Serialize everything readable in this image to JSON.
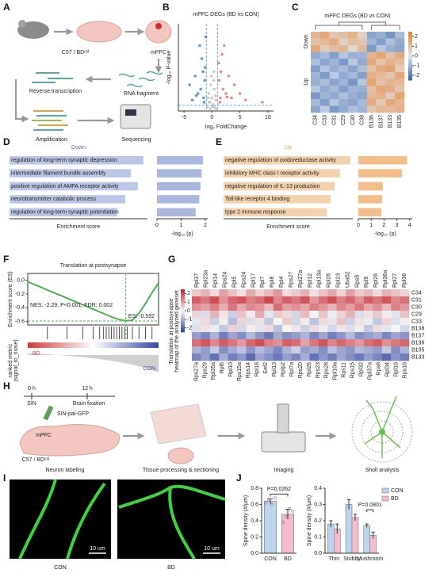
{
  "panel_labels": [
    "A",
    "B",
    "C",
    "D",
    "E",
    "F",
    "G",
    "H",
    "I",
    "J"
  ],
  "diagram_a": {
    "strain": "C57 / BDᶜˢᴵ",
    "region": "mPFC",
    "rna": "RNA fragment",
    "rt": "Reverse transcription",
    "amp": "Amplification",
    "seq": "Sequencing"
  },
  "diagram_h": {
    "t0": "0 h",
    "t12": "12 h",
    "sin": "SIN",
    "fix": "Brain fixation",
    "virus": "SIN-pal-GFP",
    "region": "mPFC",
    "strain": "C57 / BDᶜˢᴵ",
    "step1": "Neuron labeling",
    "step2": "Tissue processing & sectioning",
    "step3": "Imaging",
    "step4": "Sholl analysis"
  },
  "images_i": {
    "left": "CON",
    "right": "BD",
    "scale_left": "10 um",
    "scale_right": "10 um"
  },
  "chart_data": [
    {
      "type": "scatter",
      "title": "mPFC DEGs (BD vs CON)",
      "xlabel": "log₂ FoldChange",
      "ylabel": "-log₁₀ P-value",
      "xlim": [
        -6,
        11
      ],
      "ylim": [
        0,
        20
      ],
      "xticks": [
        -5,
        0,
        5,
        10
      ],
      "thresholds": {
        "x": [
          -1,
          1
        ],
        "y": 1.3
      },
      "series": [
        {
          "color": "#bdbdbd",
          "x": [
            -0.8,
            -0.5,
            -0.3,
            0,
            0.2,
            0.5,
            0.7,
            -0.6,
            0.4,
            0.1,
            -0.2,
            0.3,
            0.6,
            -0.4,
            0.8,
            -0.1,
            0.35,
            -0.7
          ],
          "y": [
            1,
            2,
            0.5,
            3,
            1.5,
            0.8,
            2.5,
            4,
            5,
            1,
            6,
            7,
            3.5,
            2,
            0.5,
            8,
            9,
            3
          ]
        },
        {
          "color": "#3f7fc6",
          "x": [
            -1.5,
            -2,
            -3,
            -1.2,
            -2.5,
            -4,
            -1.8,
            -1.3,
            -3.5,
            -2.2,
            -1.6,
            -1.1,
            -1.4,
            -2.8
          ],
          "y": [
            3,
            5,
            8,
            10,
            4,
            6,
            12,
            7,
            2.5,
            15,
            9,
            17,
            2,
            3.5
          ]
        },
        {
          "color": "#e06a6a",
          "x": [
            1.5,
            2,
            3,
            1.2,
            2.5,
            4,
            1.8,
            6,
            9,
            1.3,
            3.5,
            2.2,
            1.6,
            5,
            1.4,
            2.7
          ],
          "y": [
            3,
            5,
            8,
            11,
            4,
            6,
            13,
            2.5,
            2,
            7,
            3,
            15,
            9,
            4,
            2,
            3.2
          ]
        }
      ]
    },
    {
      "type": "heatmap",
      "title": "mPFC DEGs (BD vs CON)",
      "row_groups": [
        "Down",
        "Up"
      ],
      "columns": [
        "C34",
        "C33",
        "C31",
        "C29",
        "C30",
        "C38",
        "B136",
        "B137",
        "B133",
        "B135"
      ],
      "clim": [
        -2.5,
        2.5
      ],
      "colorbar_ticks": [
        2,
        1,
        0,
        -1,
        -2
      ],
      "colors": [
        "#2f5fa8",
        "#dfe6f0",
        "#e8802a"
      ],
      "values": [
        [
          1.2,
          1.5,
          0.8,
          1.0,
          1.3,
          0.5,
          -1.2,
          -1.0,
          -1.5,
          -0.8
        ],
        [
          0.9,
          1.1,
          1.4,
          0.6,
          1.0,
          0.8,
          -0.9,
          -1.3,
          -0.7,
          -1.1
        ],
        [
          1.5,
          0.7,
          1.0,
          1.2,
          0.4,
          1.1,
          -1.4,
          -0.6,
          -1.0,
          -1.2
        ],
        [
          -1.1,
          -0.8,
          -1.3,
          -0.6,
          -1.0,
          -0.9,
          1.2,
          1.6,
          0.9,
          1.4
        ],
        [
          -0.7,
          -1.2,
          -0.9,
          -1.4,
          -0.5,
          -1.1,
          1.5,
          0.8,
          1.3,
          1.0
        ],
        [
          -1.3,
          -0.6,
          -1.0,
          -0.8,
          -1.2,
          -0.7,
          0.9,
          1.4,
          1.6,
          0.7
        ],
        [
          -0.9,
          -1.4,
          -0.5,
          -1.1,
          -0.8,
          -1.3,
          1.3,
          1.1,
          0.8,
          1.5
        ],
        [
          -1.0,
          -0.7,
          -1.2,
          -0.9,
          -1.5,
          -0.6,
          1.6,
          0.9,
          1.2,
          1.1
        ],
        [
          -0.6,
          -1.1,
          -0.8,
          -1.3,
          -0.9,
          -1.0,
          1.0,
          1.5,
          1.4,
          0.8
        ],
        [
          -1.4,
          -0.9,
          -1.1,
          -0.7,
          -1.0,
          -1.2,
          1.1,
          1.3,
          0.7,
          1.6
        ],
        [
          -0.8,
          -1.3,
          -0.6,
          -1.0,
          -1.2,
          -0.8,
          1.4,
          0.7,
          1.5,
          1.2
        ],
        [
          -1.2,
          -0.5,
          -1.4,
          -1.1,
          -0.7,
          -0.9,
          0.8,
          1.2,
          1.1,
          1.3
        ]
      ]
    },
    {
      "type": "hbar",
      "title": "Down",
      "title_color": "#5b6fb5",
      "xlabel_left": "Enrichment score",
      "xlabel": "-log₁₀ (p)",
      "terms": [
        "regulation of long-term synaptic depression",
        "intermediate filament bundle assembly",
        "positive regulation of AMPA receptor activity",
        "neurotransmitter catabolic process",
        "regulation of long-term synaptic potentiation"
      ],
      "enrichment": [
        0.97,
        0.88,
        0.93,
        0.84,
        0.78
      ],
      "enrichment_xlim": [
        0,
        1
      ],
      "enrichment_color": "#bcc6e6",
      "values": [
        1.9,
        1.85,
        1.8,
        1.75,
        1.6
      ],
      "xlim": [
        0,
        2.1
      ],
      "xticks": [
        0,
        1,
        2
      ],
      "color": "#a9b6de"
    },
    {
      "type": "hbar",
      "title": "Up",
      "title_color": "#e0964f",
      "xlabel_left": "Enrichment score",
      "xlabel": "-log₁₀ (p)",
      "terms": [
        "negative regulation of oxidoreductase activity",
        "inhibitory MHC class I receptor activity",
        "negative regulation of IL-13 production",
        "Toll-like receptor 4 binding",
        "type 2 immune response"
      ],
      "enrichment": [
        0.98,
        0.9,
        0.86,
        0.83,
        0.8
      ],
      "enrichment_xlim": [
        0,
        1
      ],
      "enrichment_color": "#f5d2ae",
      "values": [
        3.8,
        3.4,
        1.9,
        1.85,
        1.8
      ],
      "xlim": [
        0,
        4.2
      ],
      "xticks": [
        0,
        1,
        2,
        3,
        4
      ],
      "color": "#f3bd8a"
    },
    {
      "type": "line",
      "title": "Translation at postsynapse",
      "ylabel": "Enrichment score (ES)",
      "color": "#4caf50",
      "ylim": [
        -0.65,
        0.1
      ],
      "yticks": [
        {
          "value": 0,
          "label": "0.0"
        },
        -0.2,
        -0.4,
        -0.6
      ],
      "values": [
        -0.02,
        -0.06,
        -0.1,
        -0.14,
        -0.18,
        -0.22,
        -0.26,
        -0.3,
        -0.34,
        -0.38,
        -0.42,
        -0.46,
        -0.5,
        -0.54,
        -0.57,
        -0.59,
        -0.58,
        -0.48,
        -0.34,
        -0.18,
        -0.04
      ],
      "hits": [
        0.15,
        0.3,
        0.42,
        0.5,
        0.55,
        0.58,
        0.6,
        0.62,
        0.64,
        0.66,
        0.68,
        0.7,
        0.72,
        0.74,
        0.76,
        0.8,
        0.85,
        0.9,
        0.95
      ],
      "annotation": "NES: -2.29, P<0.001, FDR: 0.002",
      "es_min": -0.592,
      "es_label": "ES: -0.592",
      "group_left": "BD",
      "group_right": "CON",
      "ylabel_lower": [
        "ranked metric",
        "(signal_to_noise)"
      ]
    },
    {
      "type": "heatmap",
      "ylabel": [
        "Translation at postsynapse",
        "heatmap of the analyzed geneset"
      ],
      "rows": [
        "C34",
        "C31",
        "C30",
        "C29",
        "C33",
        "B138",
        "B137",
        "B136",
        "B135",
        "B133"
      ],
      "column_labels_top": [
        "Rpl37",
        "Rpl23a",
        "Rpl14",
        "Rps24",
        "Rpl5",
        "Rps24",
        "Rpl17",
        "Rpl7",
        "Rpl8",
        "Rpl4",
        "Rps27",
        "Rpl27a",
        "Rpl12",
        "Rpl13a",
        "Rpl28",
        "Rpl23",
        "Uba52",
        "Rps5",
        "Rpl9",
        "Rpl26",
        "Rpl36a",
        "Rpl27",
        "Rpl36"
      ],
      "column_labels_bottom": [
        "Rps27a",
        "Rps29",
        "Rpl35a",
        "Rpl6",
        "Rpl10",
        "Rps15a",
        "Rps14",
        "Rpl18",
        "Eef2",
        "Rpl13",
        "Rplp2",
        "Rpl7a",
        "Rps20",
        "Rpl26",
        "Rps23",
        "Rps28",
        "Rpl10a",
        "Rps11",
        "Rps15",
        "Rpl32",
        "Rpl37a",
        "Rps8",
        "Rpl34",
        "Rpl19",
        "Rps16"
      ],
      "clim": [
        -2.5,
        2.5
      ],
      "colorbar_ticks": [
        2,
        1,
        0,
        -1,
        -2
      ],
      "colors": [
        "#2c3f9e",
        "#f4f4f6",
        "#c8242c"
      ],
      "values": [
        [
          0.5,
          0.8,
          0.3,
          1.0,
          0.6,
          0.2,
          0.9,
          0.4,
          0.7,
          1.1,
          0.3,
          0.5,
          0.8,
          0.2,
          0.6,
          0.9,
          0.4,
          1.0,
          0.5,
          0.7,
          0.3,
          0.8,
          0.6,
          0.4
        ],
        [
          1.8,
          1.5,
          2.0,
          1.2,
          1.7,
          1.9,
          1.4,
          1.6,
          2.1,
          1.3,
          1.8,
          1.5,
          1.9,
          1.1,
          1.6,
          2.0,
          1.4,
          1.7,
          1.2,
          1.8,
          1.5,
          1.9,
          1.3,
          1.6
        ],
        [
          1.2,
          1.0,
          1.4,
          0.8,
          1.5,
          0.9,
          1.3,
          1.1,
          0.7,
          1.6,
          1.0,
          1.2,
          0.9,
          1.4,
          1.1,
          0.8,
          1.3,
          1.0,
          1.5,
          0.9,
          1.2,
          0.7,
          1.4,
          1.1
        ],
        [
          0.4,
          -0.3,
          0.8,
          0.2,
          -0.5,
          0.6,
          0.1,
          0.9,
          -0.2,
          0.5,
          0.3,
          -0.4,
          0.7,
          0.0,
          0.6,
          -0.1,
          0.4,
          0.8,
          -0.3,
          0.2,
          0.5,
          0.1,
          -0.2,
          0.6
        ],
        [
          -0.2,
          0.3,
          -0.5,
          0.1,
          -0.8,
          0.4,
          -0.3,
          0.2,
          -0.6,
          0.0,
          0.5,
          -0.4,
          0.1,
          -0.7,
          0.3,
          -0.2,
          0.6,
          -0.5,
          0.2,
          -0.1,
          -0.6,
          0.4,
          -0.3,
          0.1
        ],
        [
          -0.3,
          0.2,
          -0.1,
          -0.6,
          0.4,
          -0.4,
          0.1,
          -0.2,
          0.3,
          -0.7,
          0.0,
          0.2,
          -0.5,
          0.3,
          -0.1,
          -0.4,
          0.2,
          -0.3,
          0.1,
          -0.6,
          0.3,
          -0.2,
          0.0,
          -0.4
        ],
        [
          -1.2,
          -1.5,
          -0.9,
          -1.6,
          -1.1,
          -1.4,
          -0.8,
          -1.3,
          -1.7,
          -1.0,
          -1.4,
          -1.2,
          -0.9,
          -1.5,
          -1.1,
          -1.6,
          -1.3,
          -0.8,
          -1.4,
          -1.2,
          -1.0,
          -1.5,
          -1.1,
          -1.3
        ],
        [
          1.6,
          1.9,
          1.3,
          1.8,
          1.5,
          1.1,
          1.7,
          2.0,
          1.4,
          1.2,
          1.8,
          1.6,
          1.0,
          1.5,
          1.9,
          1.3,
          1.7,
          1.4,
          1.1,
          1.6,
          1.8,
          1.2,
          1.5,
          1.7
        ],
        [
          -0.9,
          -1.2,
          -0.6,
          -1.4,
          -1.0,
          -0.7,
          -1.3,
          -0.8,
          -1.1,
          -1.5,
          -0.9,
          -0.5,
          -1.2,
          -1.0,
          -1.4,
          -0.7,
          -1.1,
          -1.3,
          -0.8,
          -1.0,
          -1.2,
          -0.6,
          -1.4,
          -0.9
        ],
        [
          -1.5,
          -1.2,
          -1.8,
          -1.0,
          -1.6,
          -1.3,
          -1.9,
          -1.1,
          -1.4,
          -1.7,
          -1.2,
          -1.5,
          -1.0,
          -1.8,
          -1.3,
          -1.6,
          -1.1,
          -1.4,
          -1.7,
          -1.2,
          -1.5,
          -1.9,
          -1.3,
          -1.6
        ]
      ]
    },
    {
      "type": "bar",
      "ylabel": "Spine density (#/μm)",
      "categories": [
        "CON",
        "BD"
      ],
      "values": [
        0.64,
        0.48
      ],
      "errors": [
        0.03,
        0.06
      ],
      "colors": [
        "#bcd5ee",
        "#f4bccb"
      ],
      "points": [
        [
          0.62,
          0.66,
          0.6,
          0.68
        ],
        [
          0.38,
          0.45,
          0.55,
          0.52
        ]
      ],
      "ylim": [
        0,
        0.8
      ],
      "yticks": [
        {
          "value": 0,
          "label": "0.0"
        },
        0.2,
        0.4,
        0.6,
        0.8
      ],
      "annotation": "P=0.0262"
    },
    {
      "type": "grouped_bar",
      "ylabel": "Spine density (#/μm)",
      "categories": [
        "Thin",
        "Stubby",
        "Mushroom"
      ],
      "series": [
        {
          "name": "CON",
          "color": "#bcd5ee",
          "values": [
            0.18,
            0.3,
            0.17
          ],
          "errors": [
            0.02,
            0.03,
            0.01
          ]
        },
        {
          "name": "BD",
          "color": "#f4bccb",
          "values": [
            0.15,
            0.22,
            0.11
          ],
          "errors": [
            0.03,
            0.02,
            0.02
          ]
        }
      ],
      "ylim": [
        0,
        0.4
      ],
      "yticks": [
        {
          "value": 0,
          "label": "0.0"
        },
        0.1,
        0.2,
        0.3,
        0.4
      ],
      "annotation": "P=0.0801",
      "annotation_category": 2
    }
  ]
}
